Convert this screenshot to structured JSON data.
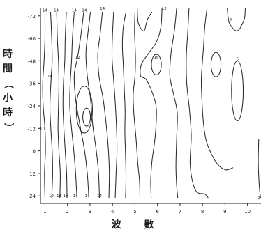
{
  "chart_data": {
    "type": "contour",
    "title": "",
    "xlabel": "波 數",
    "ylabel": "時間（小時）",
    "ylabel_chars": [
      "時",
      "間",
      "（",
      "小",
      "時",
      "）"
    ],
    "x_ticks": [
      "1",
      "2",
      "3",
      "4",
      "5",
      "6",
      "7",
      "8",
      "9",
      "10"
    ],
    "y_ticks": [
      "-72",
      "-60",
      "-48",
      "-36",
      "-24",
      "-12",
      "0",
      "12",
      "24"
    ],
    "xlim": [
      0.8,
      10.6
    ],
    "ylim": [
      -76,
      28
    ],
    "grid": false,
    "contour_lines": [
      {
        "points": [
          [
            1.0,
            -74
          ],
          [
            1.0,
            -60
          ],
          [
            0.96,
            -48
          ],
          [
            0.9,
            -36
          ],
          [
            0.92,
            -24
          ],
          [
            1.0,
            -12
          ],
          [
            1.02,
            0
          ],
          [
            0.98,
            12
          ],
          [
            1.0,
            25
          ]
        ],
        "label": "",
        "label_at": null
      },
      {
        "points": [
          [
            1.25,
            -74
          ],
          [
            1.3,
            -60
          ],
          [
            1.32,
            -48
          ],
          [
            1.28,
            -40
          ],
          [
            1.22,
            -24
          ],
          [
            1.26,
            -12
          ],
          [
            1.32,
            0
          ],
          [
            1.34,
            12
          ],
          [
            1.3,
            25
          ]
        ],
        "label": "14",
        "label_at": [
          1.22,
          -40
        ]
      },
      {
        "points": [
          [
            1.52,
            -74
          ],
          [
            1.55,
            -60
          ],
          [
            1.6,
            -48
          ],
          [
            1.62,
            -36
          ],
          [
            1.6,
            -24
          ],
          [
            1.58,
            -12
          ],
          [
            1.62,
            0
          ],
          [
            1.68,
            12
          ],
          [
            1.66,
            25
          ]
        ],
        "label": "",
        "label_at": null
      },
      {
        "points": [
          [
            1.95,
            -74
          ],
          [
            1.9,
            -60
          ],
          [
            1.88,
            -48
          ],
          [
            1.82,
            -36
          ],
          [
            1.8,
            -24
          ],
          [
            1.84,
            -12
          ],
          [
            1.9,
            0
          ],
          [
            1.96,
            12
          ],
          [
            1.98,
            25
          ]
        ],
        "label": "",
        "label_at": null
      },
      {
        "points": [
          [
            2.3,
            -74
          ],
          [
            2.22,
            -60
          ],
          [
            2.18,
            -48
          ],
          [
            2.12,
            -36
          ],
          [
            2.1,
            -24
          ],
          [
            2.18,
            -12
          ],
          [
            2.28,
            0
          ],
          [
            2.36,
            12
          ],
          [
            2.42,
            25
          ]
        ],
        "label": "",
        "label_at": null
      },
      {
        "points": [
          [
            2.72,
            -74
          ],
          [
            2.6,
            -62
          ],
          [
            2.45,
            -50
          ],
          [
            2.3,
            -40
          ],
          [
            2.38,
            -26
          ],
          [
            2.58,
            -12
          ],
          [
            2.76,
            0
          ],
          [
            2.88,
            12
          ],
          [
            2.95,
            25
          ]
        ],
        "label": "12",
        "label_at": [
          2.45,
          -50
        ]
      },
      {
        "points": [
          [
            3.02,
            -74
          ],
          [
            2.9,
            -62
          ],
          [
            2.82,
            -52
          ],
          [
            2.88,
            -40
          ],
          [
            3.02,
            -28
          ],
          [
            3.12,
            -14
          ],
          [
            3.28,
            0
          ],
          [
            3.38,
            12
          ],
          [
            3.42,
            25
          ]
        ],
        "label": "",
        "label_at": null
      },
      {
        "points": [
          [
            3.55,
            -74
          ],
          [
            3.45,
            -62
          ],
          [
            3.35,
            -52
          ],
          [
            3.4,
            -40
          ],
          [
            3.58,
            -28
          ],
          [
            3.72,
            -14
          ],
          [
            3.82,
            0
          ],
          [
            3.86,
            12
          ],
          [
            3.84,
            25
          ]
        ],
        "label": "",
        "label_at": null
      },
      {
        "points": [
          [
            4.05,
            -74
          ],
          [
            4.0,
            -62
          ],
          [
            3.98,
            -50
          ],
          [
            4.05,
            -38
          ],
          [
            4.12,
            -26
          ],
          [
            4.18,
            -12
          ],
          [
            4.2,
            0
          ],
          [
            4.16,
            12
          ],
          [
            4.12,
            25
          ]
        ],
        "label": "",
        "label_at": null
      },
      {
        "points": [
          [
            4.6,
            -74
          ],
          [
            4.48,
            -66
          ],
          [
            4.44,
            -56
          ],
          [
            4.48,
            -46
          ],
          [
            4.52,
            -34
          ],
          [
            4.56,
            -22
          ],
          [
            4.55,
            -10
          ],
          [
            4.58,
            2
          ],
          [
            4.6,
            14
          ],
          [
            4.58,
            25
          ]
        ],
        "label": "",
        "label_at": null
      },
      {
        "points": [
          [
            5.0,
            -74
          ],
          [
            4.98,
            -64
          ],
          [
            5.02,
            -50
          ],
          [
            5.0,
            -40
          ],
          [
            4.92,
            -30
          ],
          [
            4.95,
            -20
          ],
          [
            5.05,
            -6
          ],
          [
            5.12,
            6
          ],
          [
            5.2,
            16
          ],
          [
            5.22,
            25
          ]
        ],
        "label": "",
        "label_at": null
      },
      {
        "points": [
          [
            5.1,
            -76
          ],
          [
            5.15,
            -68
          ],
          [
            5.4,
            -64
          ],
          [
            5.55,
            -70
          ],
          [
            5.75,
            -74
          ]
        ],
        "label": "",
        "label_at": null
      },
      {
        "points": [
          [
            6.2,
            -76
          ],
          [
            6.15,
            -66
          ],
          [
            5.95,
            -58
          ],
          [
            5.6,
            -52
          ],
          [
            5.28,
            -46
          ],
          [
            5.25,
            -40
          ],
          [
            5.5,
            -38
          ],
          [
            5.8,
            -30
          ],
          [
            5.95,
            -22
          ],
          [
            5.9,
            -8
          ],
          [
            5.75,
            6
          ],
          [
            5.7,
            16
          ],
          [
            5.72,
            25
          ]
        ],
        "label": "",
        "label_at": null
      },
      {
        "points": [
          [
            6.85,
            -76
          ],
          [
            6.75,
            -64
          ],
          [
            6.6,
            -52
          ],
          [
            6.55,
            -40
          ],
          [
            6.72,
            -30
          ],
          [
            6.88,
            -20
          ],
          [
            6.85,
            -6
          ],
          [
            6.82,
            8
          ],
          [
            6.85,
            18
          ],
          [
            6.9,
            25
          ]
        ],
        "label": "",
        "label_at": null
      },
      {
        "points": [
          [
            7.4,
            -76
          ],
          [
            7.35,
            -64
          ],
          [
            7.28,
            -50
          ],
          [
            7.3,
            -36
          ],
          [
            7.42,
            -22
          ],
          [
            7.5,
            -8
          ],
          [
            7.45,
            6
          ],
          [
            7.55,
            16
          ],
          [
            7.75,
            22
          ],
          [
            8.1,
            23
          ],
          [
            8.25,
            25
          ]
        ],
        "label": "",
        "label_at": null
      },
      {
        "points": [
          [
            8.2,
            -76
          ],
          [
            8.1,
            -66
          ],
          [
            8.05,
            -56
          ],
          [
            8.0,
            -48
          ],
          [
            7.95,
            -38
          ],
          [
            7.98,
            -26
          ],
          [
            8.05,
            -14
          ],
          [
            8.2,
            -4
          ],
          [
            8.6,
            6
          ],
          [
            9.0,
            10
          ],
          [
            9.35,
            9
          ]
        ],
        "label": "",
        "label_at": null
      },
      {
        "points": [
          [
            9.1,
            -76
          ],
          [
            9.2,
            -68
          ],
          [
            9.55,
            -64
          ],
          [
            9.85,
            -70
          ],
          [
            9.9,
            -76
          ]
        ],
        "label": "4",
        "label_at": [
          9.25,
          -70
        ]
      },
      {
        "points": [
          [
            10.5,
            -6
          ],
          [
            10.48,
            6
          ],
          [
            10.52,
            18
          ],
          [
            10.58,
            25
          ]
        ],
        "label": "2",
        "label_at": [
          10.5,
          25
        ]
      }
    ],
    "closed_contours": [
      {
        "center": [
          2.85,
          -18
        ],
        "rx": 0.17,
        "ry": 4.8,
        "label": "",
        "label_at": null
      },
      {
        "center": [
          2.75,
          -22
        ],
        "rx": 0.36,
        "ry": 12.5,
        "label": "",
        "label_at": null
      },
      {
        "center": [
          5.95,
          -46
        ],
        "rx": 0.22,
        "ry": 5.5,
        "label": "",
        "label_at": null
      },
      {
        "center": [
          8.6,
          -46
        ],
        "rx": 0.22,
        "ry": 6.5,
        "label": "",
        "label_at": null
      },
      {
        "center": [
          9.55,
          -32
        ],
        "rx": 0.26,
        "ry": 16.0,
        "label": "6",
        "label_at": [
          9.55,
          -49
        ]
      }
    ],
    "inline_labels": [
      {
        "text": "14",
        "at": [
          1.0,
          -75
        ]
      },
      {
        "text": "14",
        "at": [
          1.5,
          -75
        ]
      },
      {
        "text": "14",
        "at": [
          2.3,
          -75
        ]
      },
      {
        "text": "14",
        "at": [
          2.75,
          -75
        ]
      },
      {
        "text": "14",
        "at": [
          3.55,
          -76
        ]
      },
      {
        "text": "12",
        "at": [
          6.3,
          -76
        ]
      },
      {
        "text": "12",
        "at": [
          1.28,
          24
        ]
      },
      {
        "text": "14",
        "at": [
          1.62,
          24
        ]
      },
      {
        "text": "14",
        "at": [
          1.92,
          24
        ]
      },
      {
        "text": "14",
        "at": [
          2.35,
          24
        ]
      },
      {
        "text": "14",
        "at": [
          2.88,
          24
        ]
      },
      {
        "text": "14",
        "at": [
          3.42,
          24
        ]
      },
      {
        "text": "16",
        "at": [
          5.95,
          -50
        ]
      },
      {
        "text": "10",
        "at": [
          0.88,
          -12
        ]
      }
    ]
  }
}
